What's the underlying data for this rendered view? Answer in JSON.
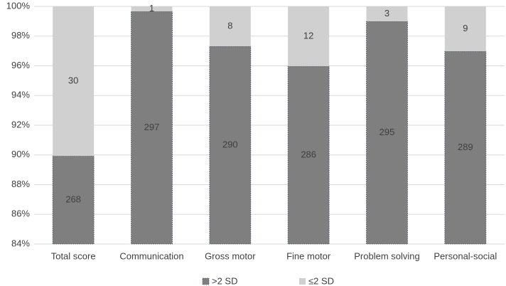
{
  "chart_data": {
    "type": "bar",
    "stacked": "percent",
    "categories": [
      "Total score",
      "Communication",
      "Gross motor",
      "Fine motor",
      "Problem solving",
      "Personal-social"
    ],
    "series": [
      {
        "name": ">2 SD",
        "color": "#7f7f7f",
        "values": [
          268,
          297,
          290,
          286,
          295,
          289
        ]
      },
      {
        "name": "≤2 SD",
        "color": "#d0d0d0",
        "values": [
          30,
          1,
          8,
          12,
          3,
          9
        ]
      }
    ],
    "ylim": [
      84,
      100
    ],
    "yticks": [
      {
        "value": 84,
        "label": "84%"
      },
      {
        "value": 86,
        "label": "86%"
      },
      {
        "value": 88,
        "label": "88%"
      },
      {
        "value": 90,
        "label": "90%"
      },
      {
        "value": 92,
        "label": "92%"
      },
      {
        "value": 94,
        "label": "94%"
      },
      {
        "value": 96,
        "label": "96%"
      },
      {
        "value": 98,
        "label": "98%"
      },
      {
        "value": 100,
        "label": "100%"
      }
    ],
    "grid": true,
    "legend": "bottom"
  }
}
